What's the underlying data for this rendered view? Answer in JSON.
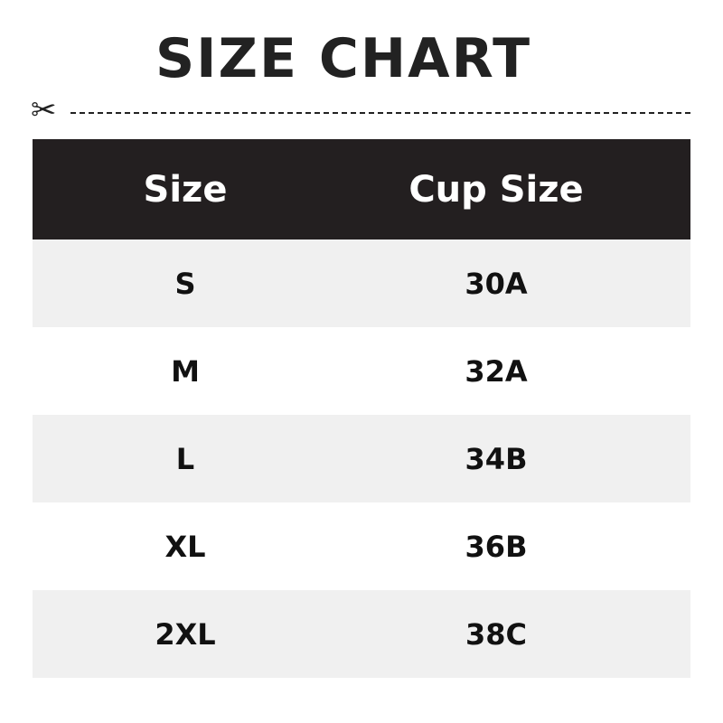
{
  "title": "SIZE CHART",
  "headers": [
    "Size",
    "Cup Size"
  ],
  "rows": [
    [
      "S",
      "30A"
    ],
    [
      "M",
      "32A"
    ],
    [
      "L",
      "34B"
    ],
    [
      "XL",
      "36B"
    ],
    [
      "2XL",
      "38C"
    ]
  ]
}
